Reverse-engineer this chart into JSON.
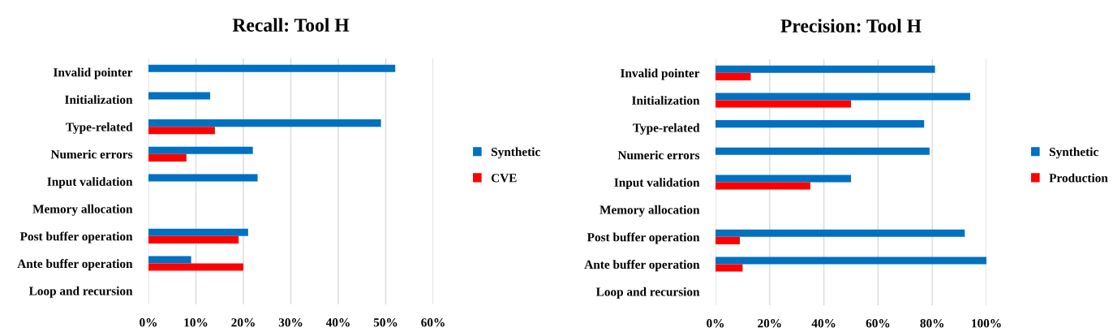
{
  "chart_data": [
    {
      "type": "bar",
      "orientation": "horizontal",
      "title": "Recall: Tool H",
      "categories": [
        "Invalid pointer",
        "Initialization",
        "Type-related",
        "Numeric errors",
        "Input validation",
        "Memory allocation",
        "Post buffer operation",
        "Ante buffer operation",
        "Loop and recursion"
      ],
      "series": [
        {
          "name": "Synthetic",
          "color": "#0070c0",
          "values": [
            52,
            13,
            49,
            22,
            23,
            null,
            21,
            9,
            null
          ]
        },
        {
          "name": "CVE",
          "color": "#ff0000",
          "values": [
            null,
            null,
            14,
            8,
            null,
            null,
            19,
            20,
            null
          ]
        }
      ],
      "xlim": [
        0,
        60
      ],
      "xticks": [
        {
          "value": 0,
          "label": "0%"
        },
        {
          "value": 10,
          "label": "10%"
        },
        {
          "value": 20,
          "label": "20%"
        },
        {
          "value": 30,
          "label": "30%"
        },
        {
          "value": 40,
          "label": "40%"
        },
        {
          "value": 50,
          "label": "50%"
        },
        {
          "value": 60,
          "label": "60%"
        }
      ],
      "grid": "x",
      "legend": "right"
    },
    {
      "type": "bar",
      "orientation": "horizontal",
      "title": "Precision: Tool H",
      "categories": [
        "Invalid pointer",
        "Initialization",
        "Type-related",
        "Numeric errors",
        "Input validation",
        "Memory allocation",
        "Post buffer operation",
        "Ante buffer operation",
        "Loop and recursion"
      ],
      "series": [
        {
          "name": "Synthetic",
          "color": "#0070c0",
          "values": [
            81,
            94,
            77,
            79,
            50,
            null,
            92,
            100,
            null
          ]
        },
        {
          "name": "Production",
          "color": "#ff0000",
          "values": [
            13,
            50,
            null,
            null,
            35,
            null,
            9,
            10,
            null
          ]
        }
      ],
      "xlim": [
        0,
        100
      ],
      "xticks": [
        {
          "value": 0,
          "label": "0%"
        },
        {
          "value": 20,
          "label": "20%"
        },
        {
          "value": 40,
          "label": "40%"
        },
        {
          "value": 60,
          "label": "60%"
        },
        {
          "value": 80,
          "label": "80%"
        },
        {
          "value": 100,
          "label": "100%"
        }
      ],
      "grid": "x",
      "legend": "right"
    }
  ]
}
